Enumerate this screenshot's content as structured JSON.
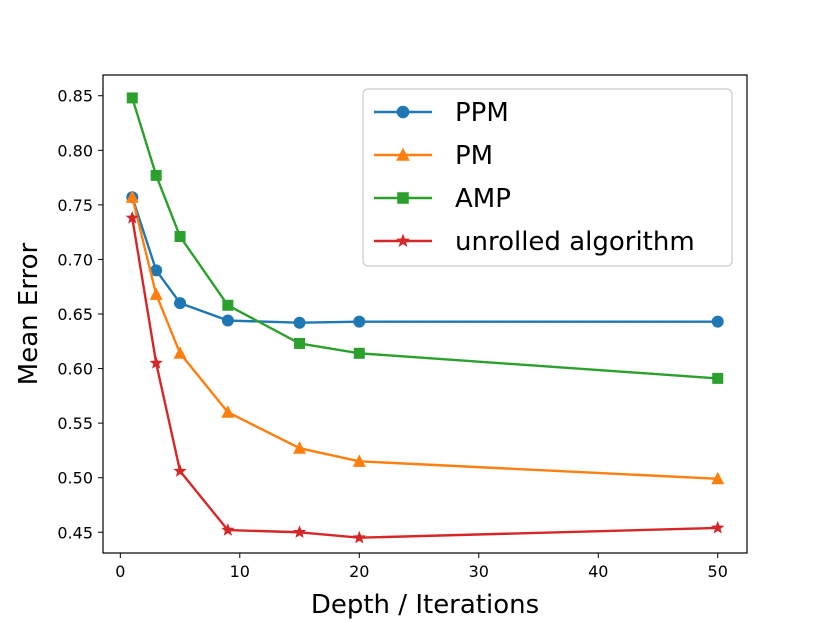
{
  "chart_data": {
    "type": "line",
    "title": "",
    "xlabel": "Depth / Iterations",
    "ylabel": "Mean Error",
    "xlim": [
      -1.45,
      52.45
    ],
    "ylim": [
      0.431,
      0.869
    ],
    "xticks": [
      0,
      10,
      20,
      30,
      40,
      50
    ],
    "yticks": [
      0.45,
      0.5,
      0.55,
      0.6,
      0.65,
      0.7,
      0.75,
      0.8,
      0.85
    ],
    "xtick_labels": [
      "0",
      "10",
      "20",
      "30",
      "40",
      "50"
    ],
    "ytick_labels": [
      "0.45",
      "0.50",
      "0.55",
      "0.60",
      "0.65",
      "0.70",
      "0.75",
      "0.80",
      "0.85"
    ],
    "legend_position": "top-right",
    "x": [
      1,
      3,
      5,
      9,
      15,
      20,
      50
    ],
    "series": [
      {
        "name": "PPM",
        "color": "#1f77b4",
        "marker": "circle",
        "values": [
          0.757,
          0.69,
          0.66,
          0.644,
          0.642,
          0.643,
          0.643
        ]
      },
      {
        "name": "PM",
        "color": "#ff7f0e",
        "marker": "triangle",
        "values": [
          0.757,
          0.668,
          0.614,
          0.56,
          0.527,
          0.515,
          0.499
        ]
      },
      {
        "name": "AMP",
        "color": "#2ca02c",
        "marker": "square",
        "values": [
          0.848,
          0.777,
          0.721,
          0.658,
          0.623,
          0.614,
          0.591
        ]
      },
      {
        "name": "unrolled algorithm",
        "color": "#d62728",
        "marker": "star",
        "values": [
          0.738,
          0.605,
          0.506,
          0.452,
          0.45,
          0.445,
          0.454
        ]
      }
    ]
  }
}
